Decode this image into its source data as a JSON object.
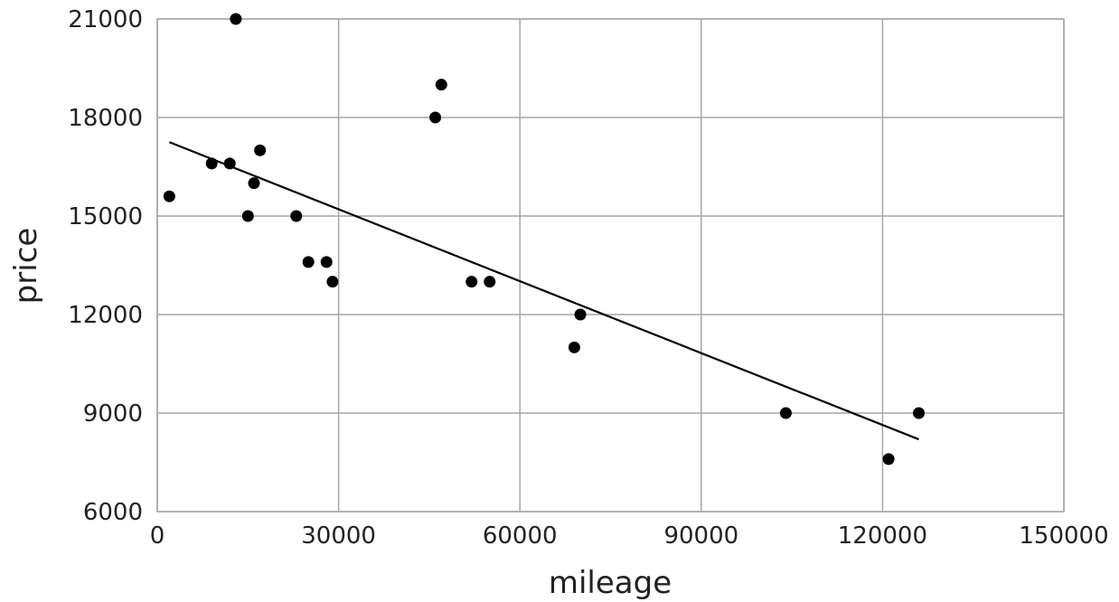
{
  "chart_data": {
    "type": "scatter",
    "xlabel": "mileage",
    "ylabel": "price",
    "xlim": [
      0,
      150000
    ],
    "ylim": [
      6000,
      21000
    ],
    "x_ticks": [
      0,
      30000,
      60000,
      90000,
      120000,
      150000
    ],
    "y_ticks": [
      6000,
      9000,
      12000,
      15000,
      18000,
      21000
    ],
    "x_tick_labels": [
      "0",
      "30000",
      "60000",
      "90000",
      "120000",
      "150000"
    ],
    "y_tick_labels": [
      "6000",
      "9000",
      "12000",
      "15000",
      "18000",
      "21000"
    ],
    "grid": true,
    "legend": "none",
    "point_color": "#000000",
    "grid_color": "#a6a6a6",
    "points": [
      {
        "x": 2000,
        "y": 15600
      },
      {
        "x": 9000,
        "y": 16600
      },
      {
        "x": 12000,
        "y": 16600
      },
      {
        "x": 13000,
        "y": 21000
      },
      {
        "x": 15000,
        "y": 15000
      },
      {
        "x": 16000,
        "y": 16000
      },
      {
        "x": 17000,
        "y": 17000
      },
      {
        "x": 23000,
        "y": 15000
      },
      {
        "x": 25000,
        "y": 13600
      },
      {
        "x": 28000,
        "y": 13600
      },
      {
        "x": 29000,
        "y": 13000
      },
      {
        "x": 46000,
        "y": 18000
      },
      {
        "x": 47000,
        "y": 19000
      },
      {
        "x": 52000,
        "y": 13000
      },
      {
        "x": 55000,
        "y": 13000
      },
      {
        "x": 69000,
        "y": 11000
      },
      {
        "x": 70000,
        "y": 12000
      },
      {
        "x": 104000,
        "y": 9000
      },
      {
        "x": 121000,
        "y": 7600
      },
      {
        "x": 126000,
        "y": 9000
      }
    ],
    "trendline": {
      "x": [
        2000,
        126000
      ],
      "y": [
        17250,
        8200
      ]
    }
  }
}
